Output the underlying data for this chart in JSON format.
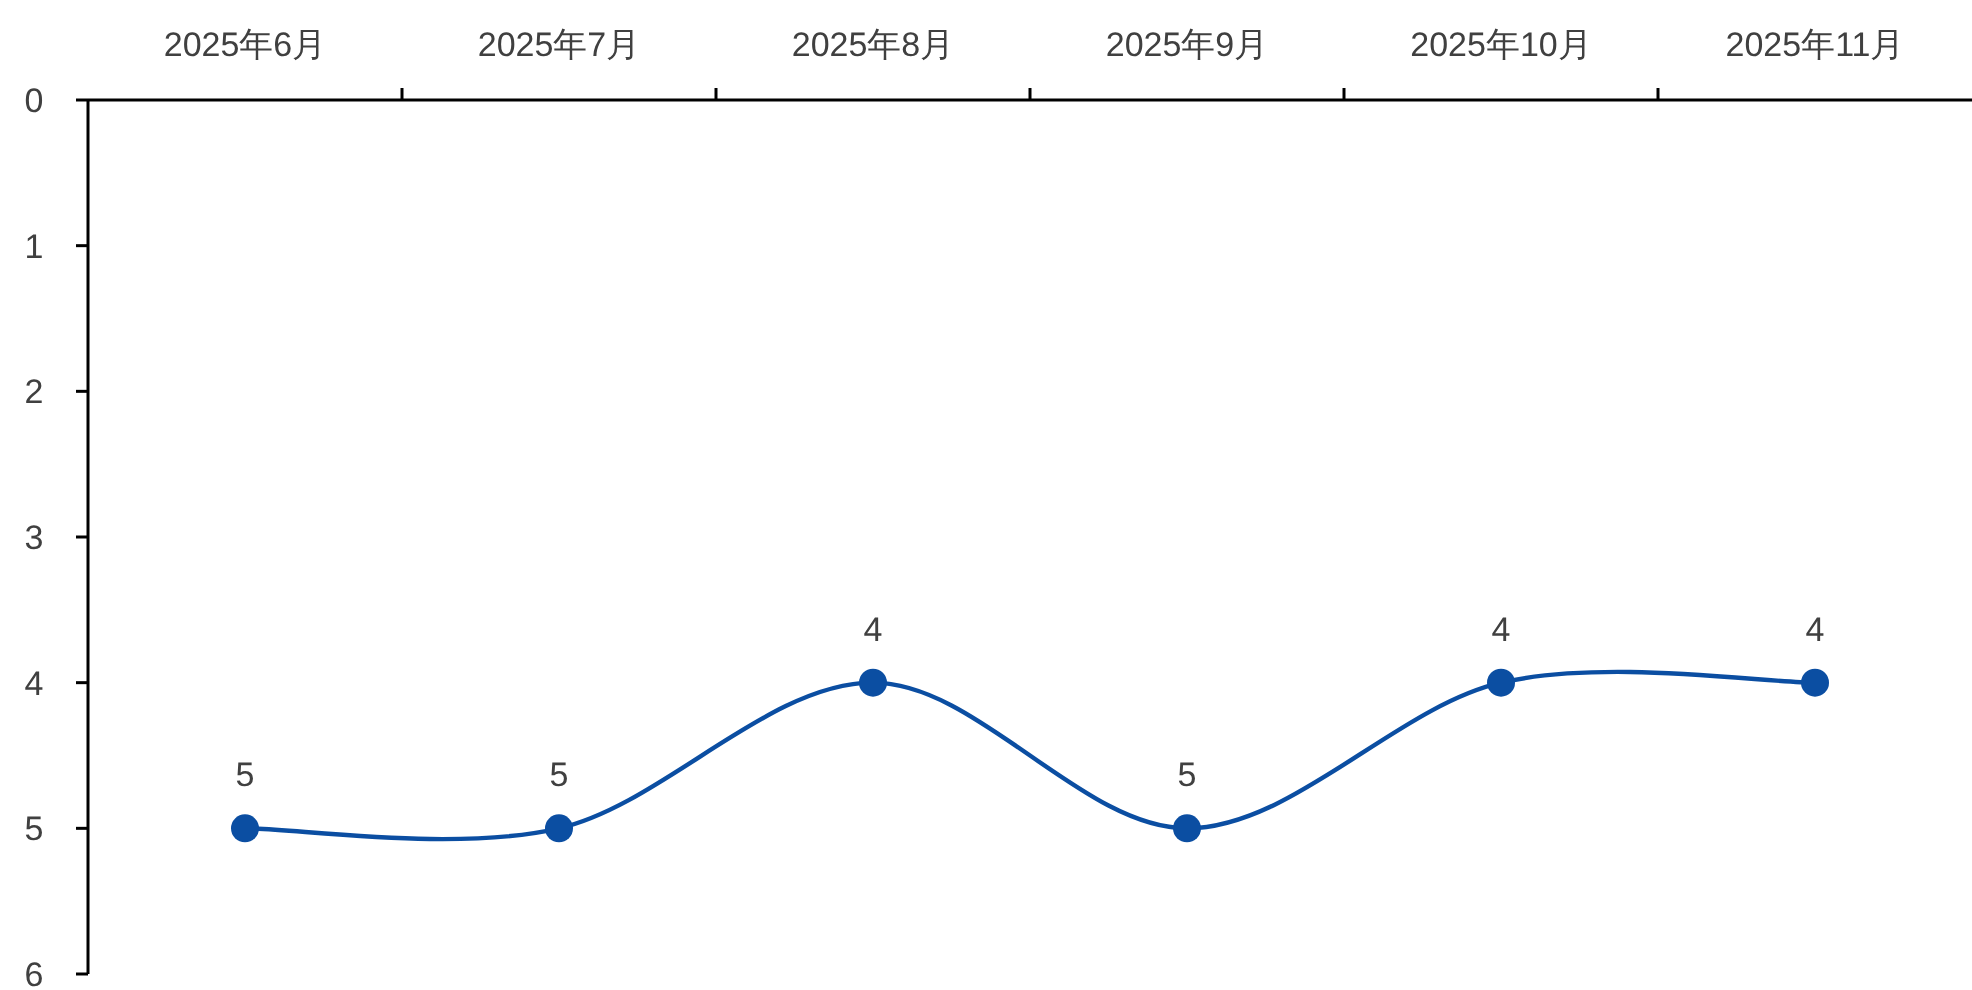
{
  "chart_data": {
    "type": "line",
    "categories": [
      "2025年6月",
      "2025年7月",
      "2025年8月",
      "2025年9月",
      "2025年10月",
      "2025年11月"
    ],
    "values": [
      5,
      5,
      4,
      5,
      4,
      4
    ],
    "color": "#0b4ea2",
    "ylim": [
      6,
      0
    ],
    "yticks": [
      0,
      1,
      2,
      3,
      4,
      5,
      6
    ],
    "data_labels": true,
    "marker": "circle"
  }
}
